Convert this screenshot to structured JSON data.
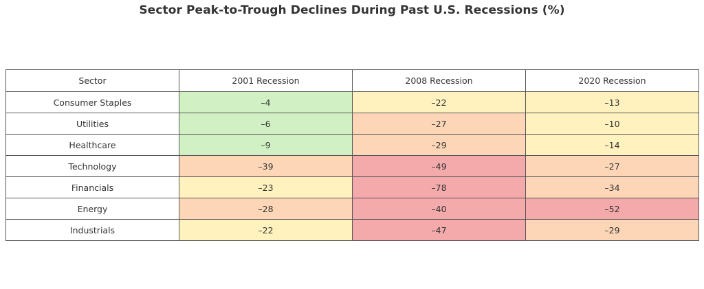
{
  "chart_data": {
    "type": "table",
    "title": "Sector Peak-to-Trough Declines During Past U.S. Recessions (%)",
    "columns": [
      "Sector",
      "2001 Recession",
      "2008 Recession",
      "2020 Recession"
    ],
    "rows": [
      {
        "sector": "Consumer Staples",
        "values": [
          "–4",
          "–22",
          "–13"
        ]
      },
      {
        "sector": "Utilities",
        "values": [
          "–6",
          "–27",
          "–10"
        ]
      },
      {
        "sector": "Healthcare",
        "values": [
          "–9",
          "–29",
          "–14"
        ]
      },
      {
        "sector": "Technology",
        "values": [
          "–39",
          "–49",
          "–27"
        ]
      },
      {
        "sector": "Financials",
        "values": [
          "–23",
          "–78",
          "–34"
        ]
      },
      {
        "sector": "Energy",
        "values": [
          "–28",
          "–40",
          "–52"
        ]
      },
      {
        "sector": "Industrials",
        "values": [
          "–22",
          "–47",
          "–29"
        ]
      }
    ],
    "color_scale": {
      "mild": "#d1f0c3",
      "moderate": "#fff2be",
      "severe": "#fcd6b6",
      "extreme": "#f4aaaa"
    },
    "cell_severity": [
      [
        "mild",
        "moderate",
        "moderate"
      ],
      [
        "mild",
        "severe",
        "moderate"
      ],
      [
        "mild",
        "severe",
        "moderate"
      ],
      [
        "severe",
        "extreme",
        "severe"
      ],
      [
        "moderate",
        "extreme",
        "severe"
      ],
      [
        "severe",
        "extreme",
        "extreme"
      ],
      [
        "moderate",
        "extreme",
        "severe"
      ]
    ]
  }
}
